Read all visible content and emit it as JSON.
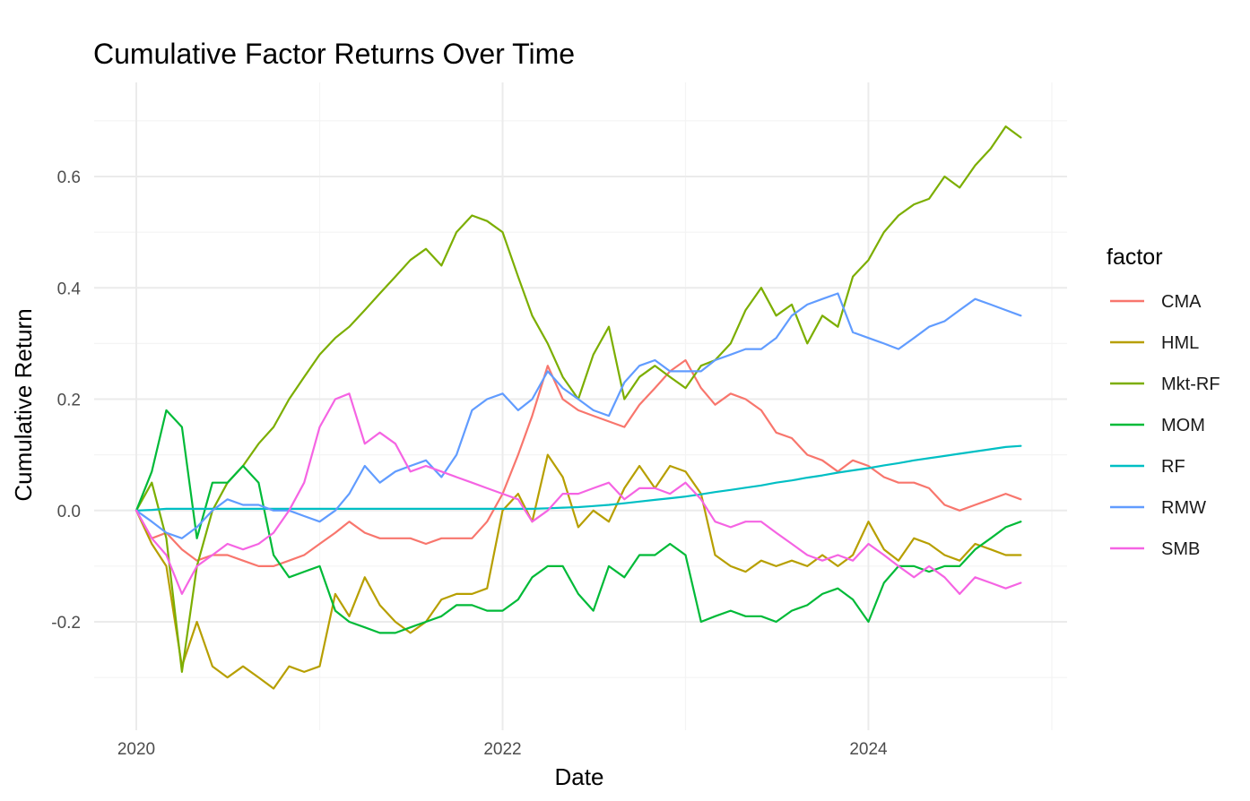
{
  "chart_data": {
    "type": "line",
    "title": "Cumulative Factor Returns Over Time",
    "xlabel": "Date",
    "ylabel": "Cumulative Return",
    "xlim": [
      "2020-01-01",
      "2024-10-31"
    ],
    "ylim": [
      -0.34,
      0.72
    ],
    "x_ticks": [
      {
        "date": "2020-01-01",
        "label": "2020"
      },
      {
        "date": "2022-01-01",
        "label": "2022"
      },
      {
        "date": "2024-01-01",
        "label": "2024"
      }
    ],
    "x_minor_ticks": [
      "2021-01-01",
      "2023-01-01",
      "2025-01-01"
    ],
    "y_ticks": [
      -0.2,
      0.0,
      0.2,
      0.4,
      0.6
    ],
    "y_tick_labels": [
      "-0.2",
      "0.0",
      "0.2",
      "0.4",
      "0.6"
    ],
    "y_minor_ticks": [
      -0.3,
      -0.1,
      0.1,
      0.3,
      0.5,
      0.7
    ],
    "grid": true,
    "legend": {
      "title": "factor",
      "position": "right"
    },
    "x": [
      "2020-01-01",
      "2020-02-01",
      "2020-03-01",
      "2020-04-01",
      "2020-05-01",
      "2020-06-01",
      "2020-07-01",
      "2020-08-01",
      "2020-09-01",
      "2020-10-01",
      "2020-11-01",
      "2020-12-01",
      "2021-01-01",
      "2021-02-01",
      "2021-03-01",
      "2021-04-01",
      "2021-05-01",
      "2021-06-01",
      "2021-07-01",
      "2021-08-01",
      "2021-09-01",
      "2021-10-01",
      "2021-11-01",
      "2021-12-01",
      "2022-01-01",
      "2022-02-01",
      "2022-03-01",
      "2022-04-01",
      "2022-05-01",
      "2022-06-01",
      "2022-07-01",
      "2022-08-01",
      "2022-09-01",
      "2022-10-01",
      "2022-11-01",
      "2022-12-01",
      "2023-01-01",
      "2023-02-01",
      "2023-03-01",
      "2023-04-01",
      "2023-05-01",
      "2023-06-01",
      "2023-07-01",
      "2023-08-01",
      "2023-09-01",
      "2023-10-01",
      "2023-11-01",
      "2023-12-01",
      "2024-01-01",
      "2024-02-01",
      "2024-03-01",
      "2024-04-01",
      "2024-05-01",
      "2024-06-01",
      "2024-07-01",
      "2024-08-01",
      "2024-09-01",
      "2024-10-01",
      "2024-10-31"
    ],
    "series": [
      {
        "name": "CMA",
        "color": "#F8766D",
        "values": [
          0.0,
          -0.05,
          -0.04,
          -0.07,
          -0.09,
          -0.08,
          -0.08,
          -0.09,
          -0.1,
          -0.1,
          -0.09,
          -0.08,
          -0.06,
          -0.04,
          -0.02,
          -0.04,
          -0.05,
          -0.05,
          -0.05,
          -0.06,
          -0.05,
          -0.05,
          -0.05,
          -0.02,
          0.03,
          0.1,
          0.17,
          0.26,
          0.2,
          0.18,
          0.17,
          0.16,
          0.15,
          0.19,
          0.22,
          0.25,
          0.27,
          0.22,
          0.19,
          0.21,
          0.2,
          0.18,
          0.14,
          0.13,
          0.1,
          0.09,
          0.07,
          0.09,
          0.08,
          0.06,
          0.05,
          0.05,
          0.04,
          0.01,
          0.0,
          0.01,
          0.02,
          0.03,
          0.02
        ]
      },
      {
        "name": "HML",
        "color": "#B79F00",
        "values": [
          0.0,
          -0.06,
          -0.1,
          -0.28,
          -0.2,
          -0.28,
          -0.3,
          -0.28,
          -0.3,
          -0.32,
          -0.28,
          -0.29,
          -0.28,
          -0.15,
          -0.19,
          -0.12,
          -0.17,
          -0.2,
          -0.22,
          -0.2,
          -0.16,
          -0.15,
          -0.15,
          -0.14,
          0.0,
          0.03,
          -0.02,
          0.1,
          0.06,
          -0.03,
          0.0,
          -0.02,
          0.04,
          0.08,
          0.04,
          0.08,
          0.07,
          0.03,
          -0.08,
          -0.1,
          -0.11,
          -0.09,
          -0.1,
          -0.09,
          -0.1,
          -0.08,
          -0.1,
          -0.08,
          -0.02,
          -0.07,
          -0.09,
          -0.05,
          -0.06,
          -0.08,
          -0.09,
          -0.06,
          -0.07,
          -0.08,
          -0.08
        ]
      },
      {
        "name": "Mkt-RF",
        "color": "#7CAE00",
        "values": [
          0.0,
          0.05,
          -0.05,
          -0.29,
          -0.1,
          0.0,
          0.05,
          0.08,
          0.12,
          0.15,
          0.2,
          0.24,
          0.28,
          0.31,
          0.33,
          0.36,
          0.39,
          0.42,
          0.45,
          0.47,
          0.44,
          0.5,
          0.53,
          0.52,
          0.5,
          0.42,
          0.35,
          0.3,
          0.24,
          0.2,
          0.28,
          0.33,
          0.2,
          0.24,
          0.26,
          0.24,
          0.22,
          0.26,
          0.27,
          0.3,
          0.36,
          0.4,
          0.35,
          0.37,
          0.3,
          0.35,
          0.33,
          0.42,
          0.45,
          0.5,
          0.53,
          0.55,
          0.56,
          0.6,
          0.58,
          0.62,
          0.65,
          0.69,
          0.67
        ]
      },
      {
        "name": "MOM",
        "color": "#00BA38",
        "values": [
          0.0,
          0.07,
          0.18,
          0.15,
          -0.05,
          0.05,
          0.05,
          0.08,
          0.05,
          -0.08,
          -0.12,
          -0.11,
          -0.1,
          -0.18,
          -0.2,
          -0.21,
          -0.22,
          -0.22,
          -0.21,
          -0.2,
          -0.19,
          -0.17,
          -0.17,
          -0.18,
          -0.18,
          -0.16,
          -0.12,
          -0.1,
          -0.1,
          -0.15,
          -0.18,
          -0.1,
          -0.12,
          -0.08,
          -0.08,
          -0.06,
          -0.08,
          -0.2,
          -0.19,
          -0.18,
          -0.19,
          -0.19,
          -0.2,
          -0.18,
          -0.17,
          -0.15,
          -0.14,
          -0.16,
          -0.2,
          -0.13,
          -0.1,
          -0.1,
          -0.11,
          -0.1,
          -0.1,
          -0.07,
          -0.05,
          -0.03,
          -0.02
        ]
      },
      {
        "name": "RF",
        "color": "#00BFC4",
        "values": [
          0.0,
          0.001,
          0.003,
          0.003,
          0.003,
          0.003,
          0.003,
          0.003,
          0.003,
          0.003,
          0.003,
          0.003,
          0.003,
          0.003,
          0.003,
          0.003,
          0.003,
          0.003,
          0.003,
          0.003,
          0.003,
          0.003,
          0.003,
          0.003,
          0.003,
          0.003,
          0.003,
          0.004,
          0.005,
          0.006,
          0.008,
          0.01,
          0.013,
          0.016,
          0.019,
          0.022,
          0.025,
          0.029,
          0.033,
          0.037,
          0.041,
          0.045,
          0.05,
          0.054,
          0.059,
          0.063,
          0.068,
          0.072,
          0.076,
          0.081,
          0.085,
          0.09,
          0.094,
          0.098,
          0.102,
          0.106,
          0.11,
          0.114,
          0.116
        ]
      },
      {
        "name": "RMW",
        "color": "#619CFF",
        "values": [
          0.0,
          -0.02,
          -0.04,
          -0.05,
          -0.03,
          0.0,
          0.02,
          0.01,
          0.01,
          0.0,
          0.0,
          -0.01,
          -0.02,
          0.0,
          0.03,
          0.08,
          0.05,
          0.07,
          0.08,
          0.09,
          0.06,
          0.1,
          0.18,
          0.2,
          0.21,
          0.18,
          0.2,
          0.25,
          0.22,
          0.2,
          0.18,
          0.17,
          0.23,
          0.26,
          0.27,
          0.25,
          0.25,
          0.25,
          0.27,
          0.28,
          0.29,
          0.29,
          0.31,
          0.35,
          0.37,
          0.38,
          0.39,
          0.32,
          0.31,
          0.3,
          0.29,
          0.31,
          0.33,
          0.34,
          0.36,
          0.38,
          0.37,
          0.36,
          0.35
        ]
      },
      {
        "name": "SMB",
        "color": "#F564E3",
        "values": [
          0.0,
          -0.05,
          -0.08,
          -0.15,
          -0.1,
          -0.08,
          -0.06,
          -0.07,
          -0.06,
          -0.04,
          0.0,
          0.05,
          0.15,
          0.2,
          0.21,
          0.12,
          0.14,
          0.12,
          0.07,
          0.08,
          0.07,
          0.06,
          0.05,
          0.04,
          0.03,
          0.02,
          -0.02,
          0.0,
          0.03,
          0.03,
          0.04,
          0.05,
          0.02,
          0.04,
          0.04,
          0.03,
          0.05,
          0.02,
          -0.02,
          -0.03,
          -0.02,
          -0.02,
          -0.04,
          -0.06,
          -0.08,
          -0.09,
          -0.08,
          -0.09,
          -0.06,
          -0.08,
          -0.1,
          -0.12,
          -0.1,
          -0.12,
          -0.15,
          -0.12,
          -0.13,
          -0.14,
          -0.13
        ]
      }
    ]
  }
}
